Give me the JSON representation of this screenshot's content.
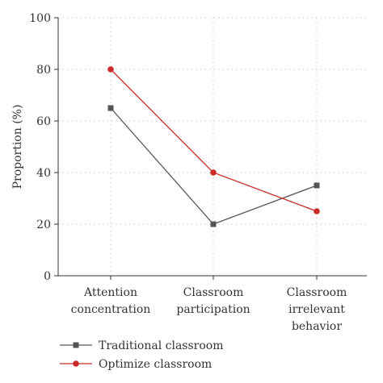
{
  "chart_data": {
    "type": "line",
    "categories": [
      [
        "Attention",
        "concentration"
      ],
      [
        "Classroom",
        "participation"
      ],
      [
        "Classroom",
        "irrelevant",
        "behavior"
      ]
    ],
    "series": [
      {
        "name": "Traditional classroom",
        "values": [
          65,
          20,
          35
        ],
        "color": "#555555",
        "marker": "square"
      },
      {
        "name": "Optimize classroom",
        "values": [
          80,
          40,
          25
        ],
        "color": "#cc2a2a",
        "marker": "circle"
      }
    ],
    "ylabel": "Proportion (%)",
    "ylim": [
      0,
      100
    ],
    "yticks": [
      0,
      20,
      40,
      60,
      80,
      100
    ],
    "grid": true,
    "legend": "bottom-left"
  }
}
